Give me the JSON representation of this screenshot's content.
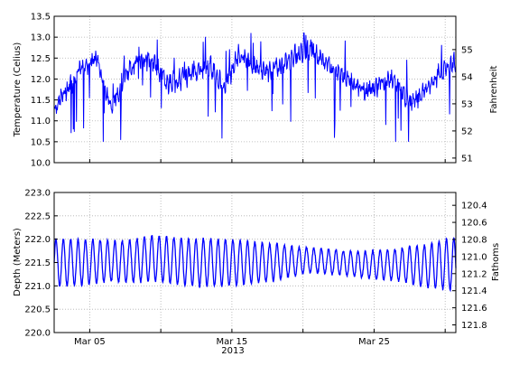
{
  "chart_data": [
    {
      "type": "line",
      "title": "",
      "xlabel": "",
      "ylabel": "Temperature (Celius)",
      "ylabel_right": "Fahrenheit",
      "ylim": [
        10.0,
        13.5
      ],
      "ylim_right": [
        50.83,
        56.23
      ],
      "yticks": [
        "10.0",
        "10.5",
        "11.0",
        "11.5",
        "12.0",
        "12.5",
        "13.0",
        "13.5"
      ],
      "yticks_right": [
        "51",
        "52",
        "53",
        "54",
        "55"
      ],
      "grid": true,
      "series": [
        {
          "color": "#0000ff",
          "x": [
            "2013-03-02",
            "2013-03-03",
            "2013-03-04",
            "2013-03-05",
            "2013-03-06",
            "2013-03-07",
            "2013-03-08",
            "2013-03-09",
            "2013-03-10",
            "2013-03-11",
            "2013-03-12",
            "2013-03-13",
            "2013-03-14",
            "2013-03-15",
            "2013-03-16",
            "2013-03-17",
            "2013-03-18",
            "2013-03-19",
            "2013-03-20",
            "2013-03-21",
            "2013-03-22",
            "2013-03-23",
            "2013-03-24",
            "2013-03-25",
            "2013-03-26",
            "2013-03-27",
            "2013-03-28",
            "2013-03-29",
            "2013-03-30"
          ],
          "y": [
            11.3,
            11.8,
            12.3,
            12.5,
            11.3,
            12.1,
            12.5,
            12.4,
            11.9,
            12.0,
            12.2,
            12.3,
            11.8,
            12.6,
            12.3,
            12.2,
            12.3,
            12.6,
            12.7,
            12.4,
            12.1,
            11.9,
            11.7,
            11.9,
            12.0,
            11.4,
            11.7,
            12.1,
            12.4
          ]
        }
      ]
    },
    {
      "type": "line",
      "title": "",
      "xlabel": "2013",
      "ylabel": "Depth (Meters)",
      "ylabel_right": "Fathoms",
      "ylim": [
        220.0,
        223.0
      ],
      "ylim_right": [
        121.89,
        120.25
      ],
      "yticks": [
        "220.0",
        "220.5",
        "221.0",
        "221.5",
        "222.0",
        "222.5",
        "223.0"
      ],
      "yticks_right": [
        "120.4",
        "120.6",
        "120.8",
        "121.0",
        "121.2",
        "121.4",
        "121.6",
        "121.8"
      ],
      "xticks": [
        "Mar 05",
        "Mar 15",
        "Mar 25"
      ],
      "grid": true,
      "series": [
        {
          "color": "#0000ff",
          "x": [
            "2013-03-02",
            "2013-03-03",
            "2013-03-04",
            "2013-03-05",
            "2013-03-06",
            "2013-03-07",
            "2013-03-08",
            "2013-03-09",
            "2013-03-10",
            "2013-03-11",
            "2013-03-12",
            "2013-03-13",
            "2013-03-14",
            "2013-03-15",
            "2013-03-16",
            "2013-03-17",
            "2013-03-18",
            "2013-03-19",
            "2013-03-20",
            "2013-03-21",
            "2013-03-22",
            "2013-03-23",
            "2013-03-24",
            "2013-03-25",
            "2013-03-26",
            "2013-03-27",
            "2013-03-28",
            "2013-03-29",
            "2013-03-30"
          ],
          "y_high": [
            222.0,
            222.0,
            222.0,
            222.05,
            222.05,
            222.1,
            222.2,
            222.3,
            222.25,
            222.2,
            222.15,
            222.1,
            222.05,
            222.0,
            221.95,
            221.9,
            221.9,
            221.85,
            221.85,
            221.85,
            221.85,
            221.85,
            221.85,
            221.9,
            221.9,
            221.95,
            221.95,
            222.0,
            222.05
          ],
          "y_low": [
            221.0,
            221.0,
            221.0,
            221.0,
            221.0,
            220.95,
            220.9,
            220.9,
            220.85,
            220.85,
            220.85,
            220.9,
            220.95,
            221.0,
            221.05,
            221.1,
            221.15,
            221.2,
            221.25,
            221.2,
            221.15,
            221.1,
            221.05,
            221.0,
            221.0,
            220.95,
            220.9,
            220.9,
            220.9
          ],
          "tide_cycles_per_day": 1.93
        }
      ]
    }
  ],
  "colors": {
    "line": "#0000ff",
    "grid": "#b0b0b0",
    "axes": "#000000"
  }
}
